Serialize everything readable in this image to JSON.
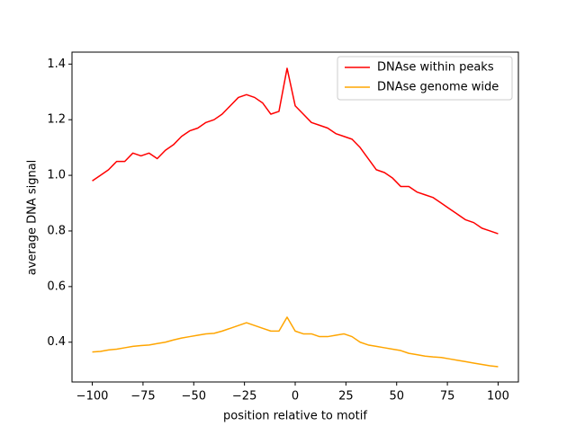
{
  "chart_data": {
    "type": "line",
    "xlabel": "position relative to motif",
    "ylabel": "average DNA signal",
    "x": [
      -100,
      -96,
      -92,
      -88,
      -84,
      -80,
      -76,
      -72,
      -68,
      -64,
      -60,
      -56,
      -52,
      -48,
      -44,
      -40,
      -36,
      -32,
      -28,
      -24,
      -20,
      -16,
      -12,
      -8,
      -4,
      0,
      4,
      8,
      12,
      16,
      20,
      24,
      28,
      32,
      36,
      40,
      44,
      48,
      52,
      56,
      60,
      64,
      68,
      72,
      76,
      80,
      84,
      88,
      92,
      96,
      100
    ],
    "series": [
      {
        "name": "DNAse within peaks",
        "color": "#ff0000",
        "values": [
          0.98,
          1.0,
          1.02,
          1.05,
          1.05,
          1.08,
          1.07,
          1.08,
          1.06,
          1.09,
          1.11,
          1.14,
          1.16,
          1.17,
          1.19,
          1.2,
          1.22,
          1.25,
          1.28,
          1.29,
          1.28,
          1.26,
          1.22,
          1.23,
          1.385,
          1.25,
          1.22,
          1.19,
          1.18,
          1.17,
          1.15,
          1.14,
          1.13,
          1.1,
          1.06,
          1.02,
          1.01,
          0.99,
          0.96,
          0.96,
          0.94,
          0.93,
          0.92,
          0.9,
          0.88,
          0.86,
          0.84,
          0.83,
          0.81,
          0.8,
          0.79
        ]
      },
      {
        "name": "DNAse genome wide",
        "color": "#ffa500",
        "values": [
          0.365,
          0.367,
          0.372,
          0.375,
          0.38,
          0.385,
          0.388,
          0.39,
          0.395,
          0.4,
          0.408,
          0.415,
          0.42,
          0.425,
          0.43,
          0.432,
          0.44,
          0.45,
          0.46,
          0.47,
          0.46,
          0.45,
          0.44,
          0.44,
          0.49,
          0.44,
          0.43,
          0.43,
          0.42,
          0.42,
          0.425,
          0.43,
          0.42,
          0.4,
          0.39,
          0.385,
          0.38,
          0.375,
          0.37,
          0.36,
          0.355,
          0.35,
          0.347,
          0.345,
          0.34,
          0.335,
          0.33,
          0.325,
          0.32,
          0.315,
          0.312
        ]
      }
    ],
    "xlim": [
      -110,
      110
    ],
    "ylim": [
      0.257,
      1.443
    ],
    "xticks": [
      {
        "value": -100,
        "label": "−100"
      },
      {
        "value": -75,
        "label": "−75"
      },
      {
        "value": -50,
        "label": "−50"
      },
      {
        "value": -25,
        "label": "−25"
      },
      0,
      25,
      50,
      75,
      100
    ],
    "yticks": [
      0.4,
      0.6,
      0.8,
      {
        "value": 1,
        "label": "1.0"
      },
      1.2,
      1.4
    ],
    "legend": "upper right"
  }
}
